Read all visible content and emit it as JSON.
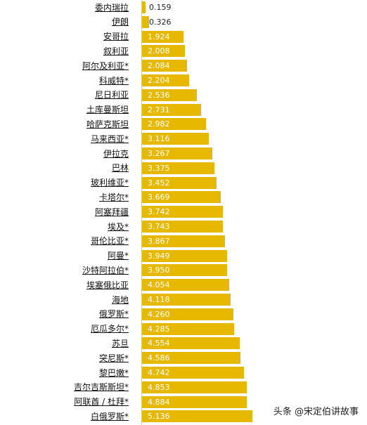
{
  "chart_data": {
    "type": "bar",
    "orientation": "horizontal",
    "title": "",
    "xlabel": "",
    "ylabel": "",
    "grid": false,
    "legend": "none",
    "bar_color": "#e6b800",
    "value_text_color": "#ffffff",
    "categories": [
      "委内瑞拉",
      "伊朗",
      "安哥拉",
      "叙利亚",
      "阿尔及利亚*",
      "科威特*",
      "尼日利亚",
      "土库曼斯坦",
      "哈萨克斯坦",
      "马来西亚*",
      "伊拉克",
      "巴林",
      "玻利维亚*",
      "卡塔尔*",
      "阿塞拜疆",
      "埃及*",
      "哥伦比亚*",
      "阿曼*",
      "沙特阿拉伯*",
      "埃塞俄比亚",
      "海地",
      "俄罗斯*",
      "厄瓜多尔*",
      "苏旦",
      "突尼斯*",
      "黎巴嫩*",
      "吉尔吉斯斯坦*",
      "阿联酋 / 杜拜*",
      "白俄罗斯*"
    ],
    "values": [
      0.159,
      0.326,
      1.924,
      2.008,
      2.084,
      2.204,
      2.536,
      2.731,
      2.982,
      3.116,
      3.267,
      3.375,
      3.452,
      3.669,
      3.742,
      3.743,
      3.867,
      3.949,
      3.95,
      4.054,
      4.118,
      4.26,
      4.285,
      4.554,
      4.586,
      4.742,
      4.853,
      4.884,
      5.136
    ],
    "value_labels": [
      "0.159",
      "0.326",
      "1.924",
      "2.008",
      "2.084",
      "2.204",
      "2.536",
      "2.731",
      "2.982",
      "3.116",
      "3.267",
      "3.375",
      "3.452",
      "3.669",
      "3.742",
      "3.743",
      "3.867",
      "3.949",
      "3.950",
      "4.054",
      "4.118",
      "4.260",
      "4.285",
      "4.554",
      "4.586",
      "4.742",
      "4.853",
      "4.884",
      "5.136"
    ]
  },
  "watermark": "头条 @宋定伯讲故事"
}
